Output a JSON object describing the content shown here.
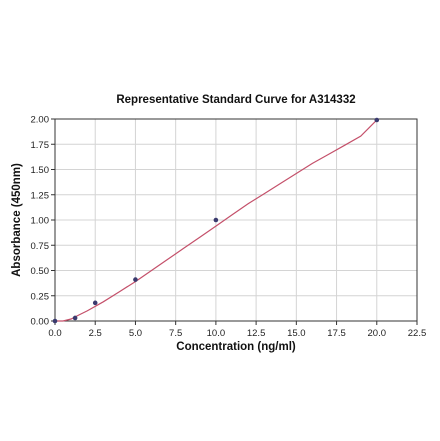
{
  "chart_data": {
    "type": "scatter",
    "title": "Representative Standard Curve for A314332",
    "xlabel": "Concentration (ng/ml)",
    "ylabel": "Absorbance (450nm)",
    "xlim": [
      0,
      22.5
    ],
    "ylim": [
      0,
      2.0
    ],
    "x_ticks": [
      "0.0",
      "2.5",
      "5.0",
      "7.5",
      "10.0",
      "12.5",
      "15.0",
      "17.5",
      "20.0",
      "22.5"
    ],
    "y_ticks": [
      "0.00",
      "0.25",
      "0.50",
      "0.75",
      "1.00",
      "1.25",
      "1.50",
      "1.75",
      "2.00"
    ],
    "grid": true,
    "colors": {
      "curve": "#c4506a",
      "points": "#3a3a6e"
    },
    "series": [
      {
        "x": [
          0,
          1.25,
          2.5,
          5,
          10,
          20
        ],
        "y": [
          0.0,
          0.03,
          0.18,
          0.41,
          1.0,
          1.99
        ]
      }
    ],
    "fit_curve": {
      "x": [
        0,
        0.5,
        1,
        1.5,
        2,
        3,
        4,
        5,
        6,
        7,
        8,
        9,
        10,
        11,
        12,
        13,
        14,
        15,
        16,
        17,
        18,
        19,
        20
      ],
      "y": [
        -0.04,
        -0.01,
        0.02,
        0.06,
        0.1,
        0.19,
        0.29,
        0.39,
        0.5,
        0.61,
        0.72,
        0.83,
        0.94,
        1.05,
        1.16,
        1.26,
        1.36,
        1.46,
        1.56,
        1.65,
        1.74,
        1.83,
        1.99
      ]
    }
  }
}
